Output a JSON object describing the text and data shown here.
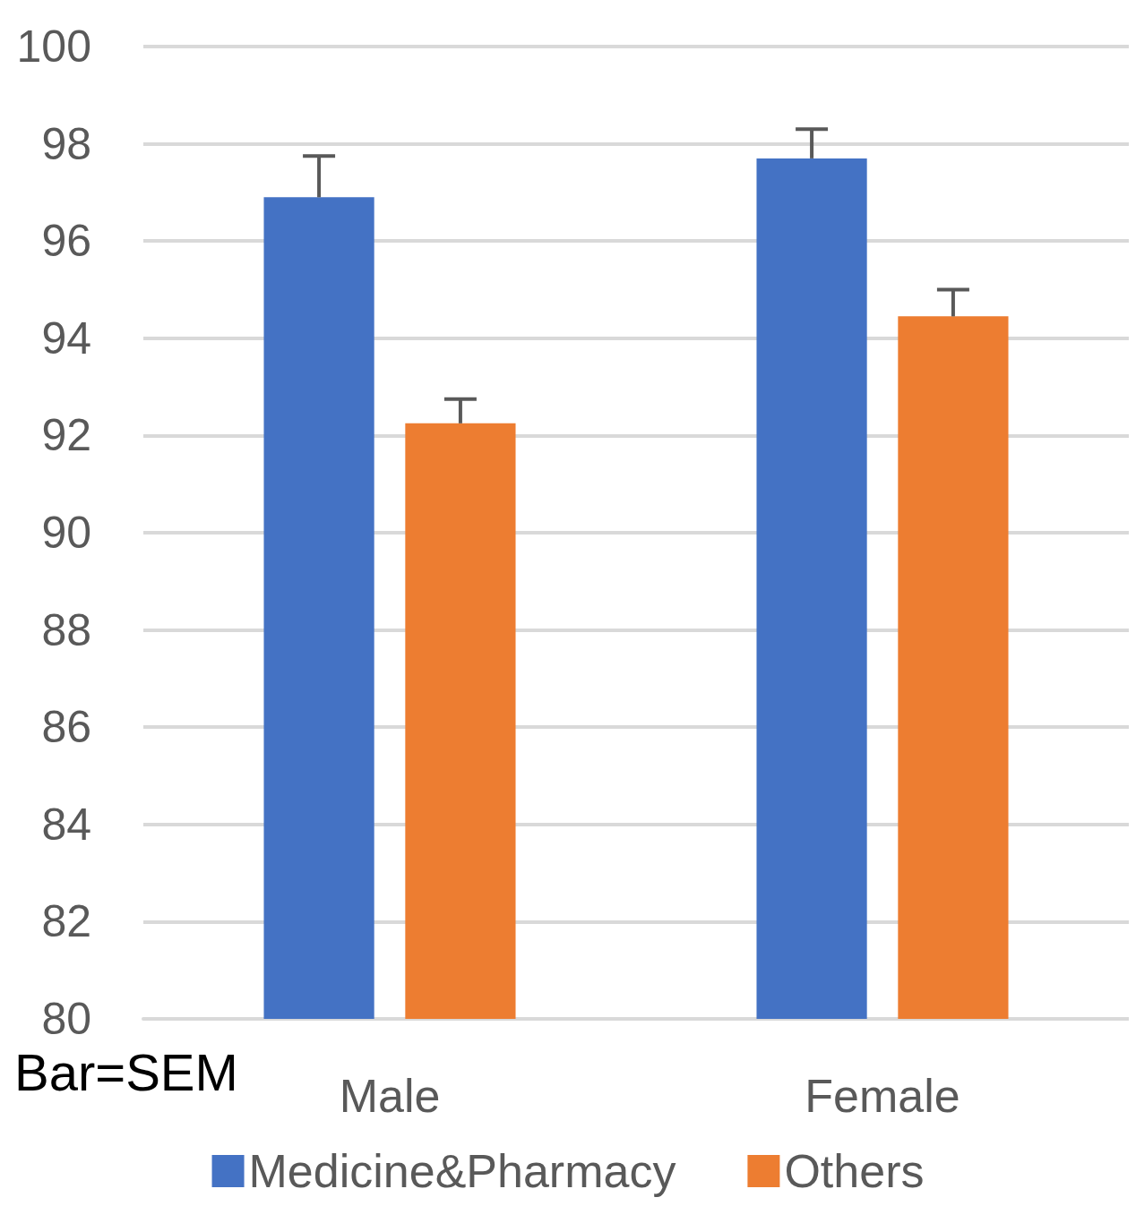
{
  "chart_data": {
    "type": "bar",
    "categories": [
      "Male",
      "Female"
    ],
    "series": [
      {
        "name": "Medicine&Pharmacy",
        "color": "#4472c4",
        "values": [
          96.9,
          97.7
        ],
        "errors": [
          [
            96.9,
            97.75
          ],
          [
            97.7,
            98.3
          ]
        ]
      },
      {
        "name": "Others",
        "color": "#ed7d31",
        "values": [
          92.25,
          94.45
        ],
        "errors": [
          [
            92.25,
            92.75
          ],
          [
            94.45,
            95.0
          ]
        ]
      }
    ],
    "ylim": [
      80,
      100
    ],
    "yticks": [
      80,
      82,
      84,
      86,
      88,
      90,
      92,
      94,
      96,
      98,
      100
    ],
    "grid": "y",
    "legend": "bottom",
    "annotations": [
      "Bar=SEM"
    ]
  }
}
